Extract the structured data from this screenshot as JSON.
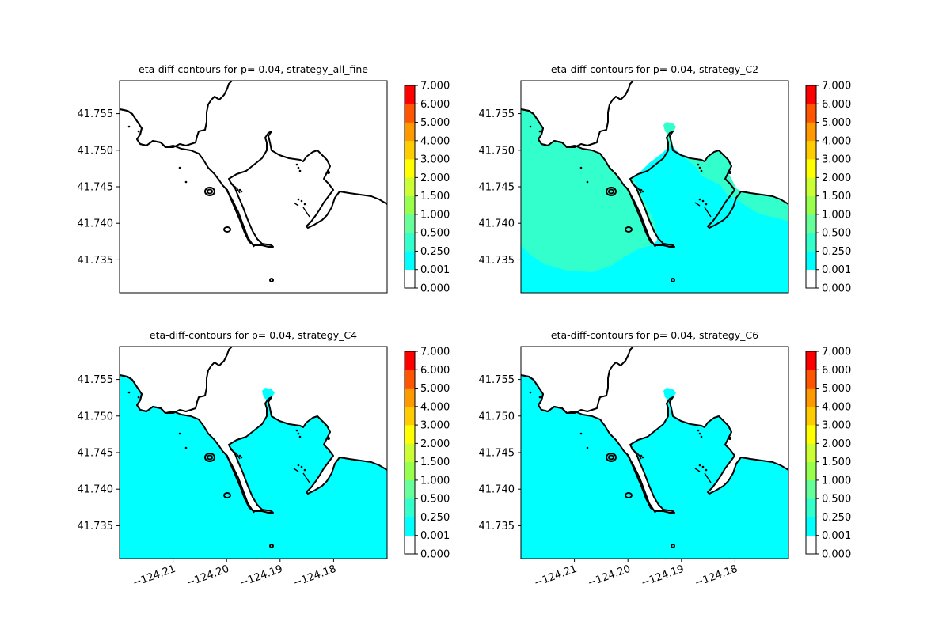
{
  "chart_data": [
    {
      "type": "heatmap",
      "title": "eta-diff-contours for p= 0.04, strategy_all_fine",
      "xlabel": "",
      "ylabel": "",
      "xlim": [
        -124.22,
        -124.17
      ],
      "ylim": [
        41.7305,
        41.7595
      ],
      "yticks": [
        "41.755",
        "41.750",
        "41.745",
        "41.740",
        "41.735"
      ],
      "ytick_values": [
        41.755,
        41.75,
        41.745,
        41.74,
        41.735
      ],
      "xticks": [],
      "xtick_values": [],
      "fill": "none",
      "colorbar": {
        "levels": [
          0.0,
          0.001,
          0.25,
          0.5,
          1.0,
          1.5,
          2.0,
          3.0,
          4.0,
          5.0,
          6.0,
          7.0
        ],
        "labels": [
          "0.000",
          "0.001",
          "0.250",
          "0.500",
          "1.000",
          "1.500",
          "2.000",
          "3.000",
          "4.000",
          "5.000",
          "6.000",
          "7.000"
        ],
        "colors": [
          "#ffffff",
          "#00ffff",
          "#33ffcc",
          "#66ff99",
          "#99ff4d",
          "#ccff33",
          "#ffff00",
          "#ffcc00",
          "#ff9900",
          "#ff5500",
          "#ff0000"
        ]
      }
    },
    {
      "type": "heatmap",
      "title": "eta-diff-contours for p= 0.04, strategy_C2",
      "xlabel": "",
      "ylabel": "",
      "xlim": [
        -124.22,
        -124.17
      ],
      "ylim": [
        41.7305,
        41.7595
      ],
      "yticks": [
        "41.755",
        "41.750",
        "41.745",
        "41.740",
        "41.735"
      ],
      "ytick_values": [
        41.755,
        41.75,
        41.745,
        41.74,
        41.735
      ],
      "xticks": [],
      "xtick_values": [],
      "fill": "mixed",
      "colorbar": {
        "levels": [
          0.0,
          0.001,
          0.25,
          0.5,
          1.0,
          1.5,
          2.0,
          3.0,
          4.0,
          5.0,
          6.0,
          7.0
        ],
        "labels": [
          "0.000",
          "0.001",
          "0.250",
          "0.500",
          "1.000",
          "1.500",
          "2.000",
          "3.000",
          "4.000",
          "5.000",
          "6.000",
          "7.000"
        ],
        "colors": [
          "#ffffff",
          "#00ffff",
          "#33ffcc",
          "#66ff99",
          "#99ff4d",
          "#ccff33",
          "#ffff00",
          "#ffcc00",
          "#ff9900",
          "#ff5500",
          "#ff0000"
        ]
      }
    },
    {
      "type": "heatmap",
      "title": "eta-diff-contours for p= 0.04, strategy_C4",
      "xlabel": "",
      "ylabel": "",
      "xlim": [
        -124.22,
        -124.17
      ],
      "ylim": [
        41.7305,
        41.7595
      ],
      "yticks": [
        "41.755",
        "41.750",
        "41.745",
        "41.740",
        "41.735"
      ],
      "ytick_values": [
        41.755,
        41.75,
        41.745,
        41.74,
        41.735
      ],
      "xticks": [
        "−124.21",
        "−124.20",
        "−124.19",
        "−124.18"
      ],
      "xtick_values": [
        -124.21,
        -124.2,
        -124.19,
        -124.18
      ],
      "fill": "low",
      "colorbar": {
        "levels": [
          0.0,
          0.001,
          0.25,
          0.5,
          1.0,
          1.5,
          2.0,
          3.0,
          4.0,
          5.0,
          6.0,
          7.0
        ],
        "labels": [
          "0.000",
          "0.001",
          "0.250",
          "0.500",
          "1.000",
          "1.500",
          "2.000",
          "3.000",
          "4.000",
          "5.000",
          "6.000",
          "7.000"
        ],
        "colors": [
          "#ffffff",
          "#00ffff",
          "#33ffcc",
          "#66ff99",
          "#99ff4d",
          "#ccff33",
          "#ffff00",
          "#ffcc00",
          "#ff9900",
          "#ff5500",
          "#ff0000"
        ]
      }
    },
    {
      "type": "heatmap",
      "title": "eta-diff-contours for p= 0.04, strategy_C6",
      "xlabel": "",
      "ylabel": "",
      "xlim": [
        -124.22,
        -124.17
      ],
      "ylim": [
        41.7305,
        41.7595
      ],
      "yticks": [
        "41.755",
        "41.750",
        "41.745",
        "41.740",
        "41.735"
      ],
      "ytick_values": [
        41.755,
        41.75,
        41.745,
        41.74,
        41.735
      ],
      "xticks": [
        "−124.21",
        "−124.20",
        "−124.19",
        "−124.18"
      ],
      "xtick_values": [
        -124.21,
        -124.2,
        -124.19,
        -124.18
      ],
      "fill": "low",
      "colorbar": {
        "levels": [
          0.0,
          0.001,
          0.25,
          0.5,
          1.0,
          1.5,
          2.0,
          3.0,
          4.0,
          5.0,
          6.0,
          7.0
        ],
        "labels": [
          "0.000",
          "0.001",
          "0.250",
          "0.500",
          "1.000",
          "1.500",
          "2.000",
          "3.000",
          "4.000",
          "5.000",
          "6.000",
          "7.000"
        ],
        "colors": [
          "#ffffff",
          "#00ffff",
          "#33ffcc",
          "#66ff99",
          "#99ff4d",
          "#ccff33",
          "#ffff00",
          "#ffcc00",
          "#ff9900",
          "#ff5500",
          "#ff0000"
        ]
      }
    }
  ]
}
